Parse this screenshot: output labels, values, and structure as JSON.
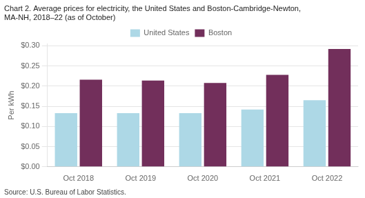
{
  "chart_data": {
    "type": "bar",
    "title": [
      "Chart 2. Average prices for electricity, the United States and Boston-Cambridge-Newton,",
      "MA-NH, 2018–22 (as of October)"
    ],
    "y_label": "Per kWh",
    "annotations": [
      "Source: U.S. Bureau of Labor Statistics."
    ],
    "categories": [
      "Oct 2018",
      "Oct 2019",
      "Oct 2020",
      "Oct 2021",
      "Oct 2022"
    ],
    "series": [
      {
        "name": "United States",
        "color": "#add8e6",
        "values": [
          0.133,
          0.133,
          0.133,
          0.142,
          0.165
        ]
      },
      {
        "name": "Boston",
        "color": "#722F5B",
        "values": [
          0.216,
          0.214,
          0.208,
          0.228,
          0.292
        ]
      }
    ],
    "ylim": [
      0,
      0.305
    ],
    "yticks": [
      {
        "value": 0.0,
        "label": "$0.00"
      },
      {
        "value": 0.05,
        "label": "$0.05"
      },
      {
        "value": 0.1,
        "label": "$0.10"
      },
      {
        "value": 0.15,
        "label": "$0.15"
      },
      {
        "value": 0.2,
        "label": "$0.20"
      },
      {
        "value": 0.25,
        "label": "$0.25"
      },
      {
        "value": 0.3,
        "label": "$0.30"
      }
    ],
    "grid": true,
    "legend": "top"
  }
}
